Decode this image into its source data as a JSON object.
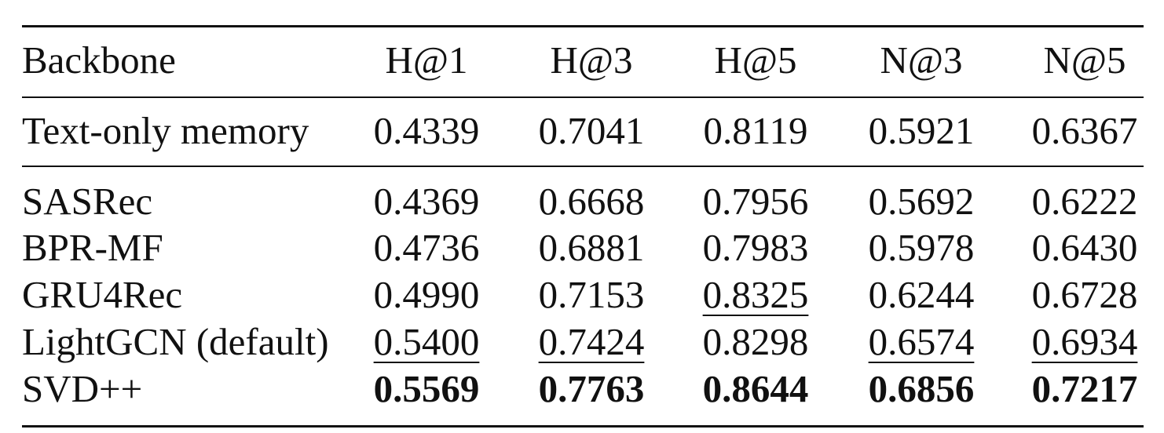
{
  "table": {
    "header": [
      "Backbone",
      "H@1",
      "H@3",
      "H@5",
      "N@3",
      "N@5"
    ],
    "rows": [
      [
        "Text-only memory",
        "0.4339",
        "0.7041",
        "0.8119",
        "0.5921",
        "0.6367"
      ],
      [
        "SASRec",
        "0.4369",
        "0.6668",
        "0.7956",
        "0.5692",
        "0.6222"
      ],
      [
        "BPR-MF",
        "0.4736",
        "0.6881",
        "0.7983",
        "0.5978",
        "0.6430"
      ],
      [
        "GRU4Rec",
        "0.4990",
        "0.7153",
        "0.8325",
        "0.6244",
        "0.6728"
      ],
      [
        "LightGCN (default)",
        "0.5400",
        "0.7424",
        "0.8298",
        "0.6574",
        "0.6934"
      ],
      [
        "SVD++",
        "0.5569",
        "0.7763",
        "0.8644",
        "0.6856",
        "0.7217"
      ]
    ]
  }
}
